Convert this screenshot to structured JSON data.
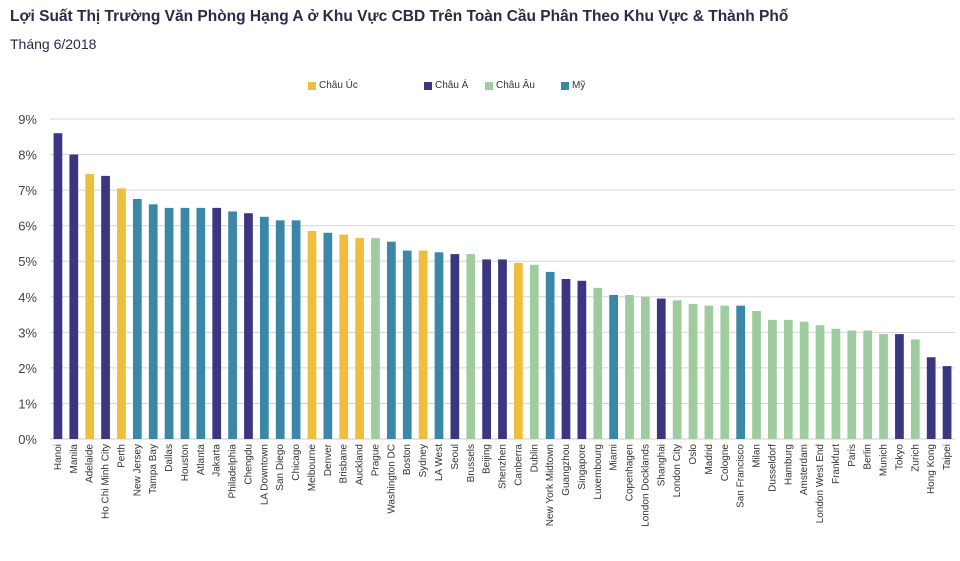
{
  "title": "Lợi Suất Thị Trường Văn Phòng Hạng A ở Khu Vực CBD Trên Toàn Cầu Phân Theo Khu Vực & Thành Phố",
  "subtitle": "Tháng 6/2018",
  "colors": {
    "Châu Úc": "#f0be3c",
    "Châu Á": "#3b3680",
    "Châu Âu": "#9fcc9f",
    "Mỹ": "#3a87a8",
    "grid": "#d6d6d6"
  },
  "chart_data": {
    "type": "bar",
    "title": "Lợi Suất Thị Trường Văn Phòng Hạng A ở Khu Vực CBD Trên Toàn Cầu Phân Theo Khu Vực & Thành Phố",
    "subtitle": "Tháng 6/2018",
    "xlabel": "",
    "ylabel": "",
    "ylim": [
      0,
      9
    ],
    "yticks": [
      "0%",
      "1%",
      "2%",
      "3%",
      "4%",
      "5%",
      "6%",
      "7%",
      "8%",
      "9%"
    ],
    "grid": true,
    "legend": [
      "Châu Úc",
      "Châu Á",
      "Châu Âu",
      "Mỹ"
    ],
    "legend_position": "top-center",
    "categories": [
      "Hanoi",
      "Manila",
      "Adelaide",
      "Ho Chi Minh City",
      "Perth",
      "New Jersey",
      "Tampa Bay",
      "Dallas",
      "Houston",
      "Atlanta",
      "Jakarta",
      "Philadelphia",
      "Chengdu",
      "LA Downtown",
      "San Diego",
      "Chicago",
      "Melbourne",
      "Denver",
      "Brisbane",
      "Auckland",
      "Prague",
      "Washington DC",
      "Boston",
      "Sydney",
      "LA West",
      "Seoul",
      "Brussels",
      "Beijing",
      "Shenzhen",
      "Canberra",
      "Dublin",
      "New York Midtown",
      "Guangzhou",
      "Singapore",
      "Luxembourg",
      "Miami",
      "Copenhagen",
      "London Docklands",
      "Shanghai",
      "London City",
      "Oslo",
      "Madrid",
      "Cologne",
      "San Francisco",
      "Milan",
      "Dusseldorf",
      "Hamburg",
      "Amsterdam",
      "London West End",
      "Frankfurt",
      "Paris",
      "Berlin",
      "Munich",
      "Tokyo",
      "Zurich",
      "Hong Kong",
      "Taipei"
    ],
    "values": [
      8.6,
      8.0,
      7.45,
      7.4,
      7.05,
      6.75,
      6.6,
      6.5,
      6.5,
      6.5,
      6.5,
      6.4,
      6.35,
      6.25,
      6.15,
      6.15,
      5.85,
      5.8,
      5.75,
      5.65,
      5.65,
      5.55,
      5.3,
      5.3,
      5.25,
      5.2,
      5.2,
      5.05,
      5.05,
      4.95,
      4.9,
      4.7,
      4.5,
      4.45,
      4.25,
      4.05,
      4.05,
      4.0,
      3.95,
      3.9,
      3.8,
      3.75,
      3.75,
      3.75,
      3.6,
      3.35,
      3.35,
      3.3,
      3.2,
      3.1,
      3.05,
      3.05,
      2.95,
      2.95,
      2.8,
      2.3,
      2.05
    ],
    "regions": [
      "Châu Á",
      "Châu Á",
      "Châu Úc",
      "Châu Á",
      "Châu Úc",
      "Mỹ",
      "Mỹ",
      "Mỹ",
      "Mỹ",
      "Mỹ",
      "Châu Á",
      "Mỹ",
      "Châu Á",
      "Mỹ",
      "Mỹ",
      "Mỹ",
      "Châu Úc",
      "Mỹ",
      "Châu Úc",
      "Châu Úc",
      "Châu Âu",
      "Mỹ",
      "Mỹ",
      "Châu Úc",
      "Mỹ",
      "Châu Á",
      "Châu Âu",
      "Châu Á",
      "Châu Á",
      "Châu Úc",
      "Châu Âu",
      "Mỹ",
      "Châu Á",
      "Châu Á",
      "Châu Âu",
      "Mỹ",
      "Châu Âu",
      "Châu Âu",
      "Châu Á",
      "Châu Âu",
      "Châu Âu",
      "Châu Âu",
      "Châu Âu",
      "Mỹ",
      "Châu Âu",
      "Châu Âu",
      "Châu Âu",
      "Châu Âu",
      "Châu Âu",
      "Châu Âu",
      "Châu Âu",
      "Châu Âu",
      "Châu Âu",
      "Châu Á",
      "Châu Âu",
      "Châu Á",
      "Châu Á"
    ]
  }
}
